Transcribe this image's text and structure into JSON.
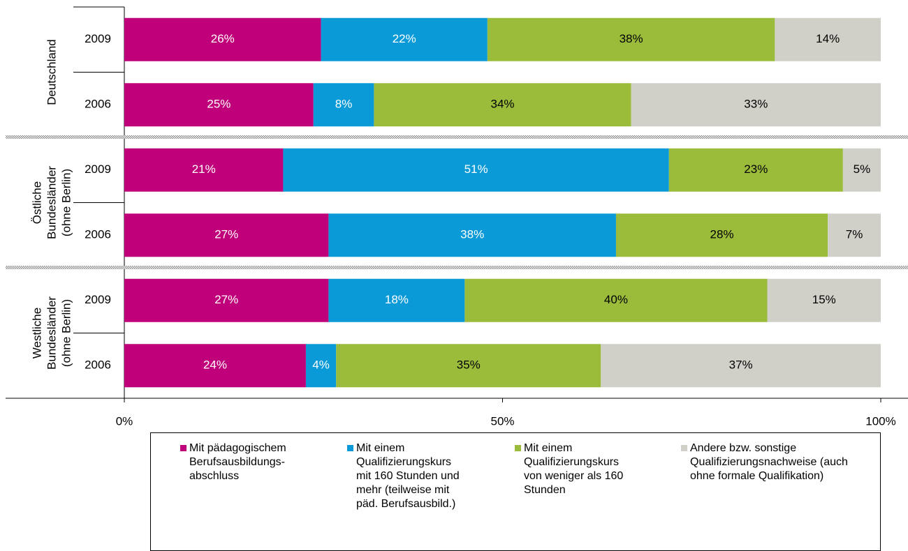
{
  "chart_data": {
    "type": "stacked_barh",
    "groups": [
      [
        "Deutschland"
      ],
      [
        "Östliche",
        "Bundesländer",
        "(ohne Berlin)"
      ],
      [
        "Westliche",
        "Bundesländer",
        "(ohne Berlin)"
      ]
    ],
    "categories": [
      "2009",
      "2006",
      "2009",
      "2006",
      "2009",
      "2006"
    ],
    "series": [
      {
        "name": "Mit pädagogischem Berufsausbildungs-abschluss",
        "color": "#c0007a",
        "label_color": "#ffffff",
        "values": [
          26,
          25,
          21,
          27,
          27,
          24
        ],
        "value_labels": [
          "26%",
          "25%",
          "21%",
          "27%",
          "27%",
          "24%"
        ]
      },
      {
        "name": "Mit einem Qualifizierungskurs mit 160 Stunden und mehr (teilweise mit päd. Berufsausbild.)",
        "color": "#0a9ad7",
        "label_color": "#ffffff",
        "values": [
          22,
          8,
          51,
          38,
          18,
          4
        ],
        "value_labels": [
          "22%",
          "8%",
          "51%",
          "38%",
          "18%",
          "4%"
        ]
      },
      {
        "name": "Mit einem Qualifizierungskurs von weniger als 160 Stunden",
        "color": "#9bbb3b",
        "label_color": "#000000",
        "values": [
          38,
          34,
          23,
          28,
          40,
          35
        ],
        "value_labels": [
          "38%",
          "34%",
          "23%",
          "28%",
          "40%",
          "35%"
        ]
      },
      {
        "name": "Andere bzw. sonstige Qualifizierungsnachweise (auch ohne formale Qualifikation)",
        "color": "#d0cfc8",
        "label_color": "#000000",
        "values": [
          14,
          33,
          5,
          7,
          15,
          37
        ],
        "value_labels": [
          "14%",
          "33%",
          "5%",
          "7%",
          "15%",
          "37%"
        ]
      }
    ],
    "xlim": [
      0,
      100
    ],
    "xticks": [
      {
        "value": 0,
        "label": "0%"
      },
      {
        "value": 50,
        "label": "50%"
      },
      {
        "value": 100,
        "label": "100%"
      }
    ]
  }
}
